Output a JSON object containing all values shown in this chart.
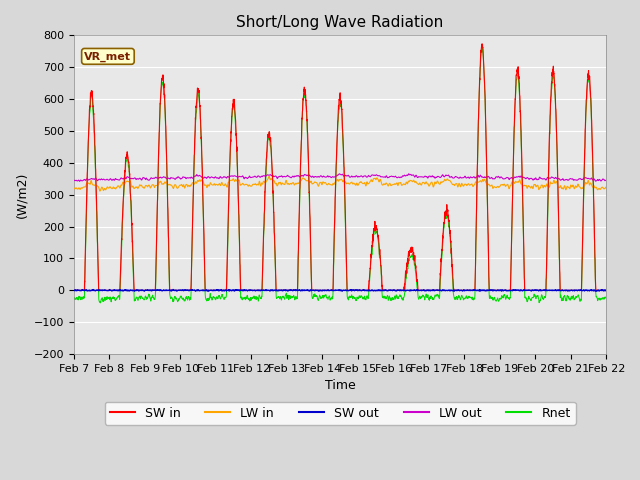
{
  "title": "Short/Long Wave Radiation",
  "ylabel": "(W/m2)",
  "xlabel": "Time",
  "ylim": [
    -200,
    800
  ],
  "yticks": [
    -200,
    -100,
    0,
    100,
    200,
    300,
    400,
    500,
    600,
    700,
    800
  ],
  "xtick_labels": [
    "Feb 7",
    "Feb 8",
    "Feb 9",
    "Feb 10",
    "Feb 11",
    "Feb 12",
    "Feb 13",
    "Feb 14",
    "Feb 15",
    "Feb 16",
    "Feb 17",
    "Feb 18",
    "Feb 19",
    "Feb 20",
    "Feb 21",
    "Feb 22"
  ],
  "annotation_text": "VR_met",
  "colors": {
    "SW_in": "#ff0000",
    "LW_in": "#ffa500",
    "SW_out": "#0000cc",
    "LW_out": "#cc00cc",
    "Rnet": "#00dd00"
  },
  "legend_labels": [
    "SW in",
    "LW in",
    "SW out",
    "LW out",
    "Rnet"
  ],
  "background_color": "#e8e8e8",
  "grid_color": "#ffffff",
  "title_fontsize": 11,
  "label_fontsize": 9,
  "tick_fontsize": 8,
  "figwidth": 6.4,
  "figheight": 4.8,
  "dpi": 100
}
